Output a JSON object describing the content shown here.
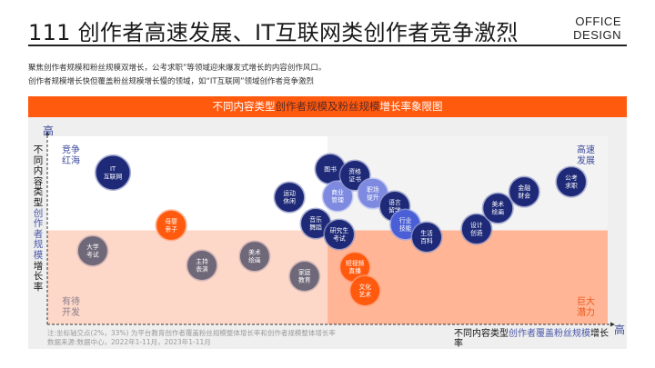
{
  "header": {
    "title": "111 创作者高速发展、IT互联网类创作者竞争激烈",
    "brand_line1": "OFFICE",
    "brand_line2": "DESIGN"
  },
  "description": {
    "line1": "聚焦创作者规模和粉丝规模双增长，公考求职”等领域迎来爆发式增长的内容创作风口。",
    "line2": "创作者规模增长快但覆盖粉丝规模增长慢的领域，如“IT互联网”领域创作者竞争激烈"
  },
  "colors": {
    "navy": "#1e2a78",
    "light_blue": "#7d8ae0",
    "mid_blue": "#4a5fd6",
    "gray": "#6e6878",
    "orange": "#ff5a0e",
    "banner": "#ff5a0e",
    "q_top_left": "#ffffff",
    "q_top_right": "#f3f3f3",
    "q_bottom_left": "#fdd8c8",
    "q_bottom_right": "#ffb596"
  },
  "chart_data": {
    "type": "scatter",
    "title_parts": [
      "不同内容类型",
      "创作者规模及粉丝规模",
      "增长率象限图"
    ],
    "xlabel_parts": [
      "不同内容类型",
      "创作者覆盖粉丝规模",
      "增长率"
    ],
    "ylabel_parts": [
      "不同内容类型",
      "创作者规模",
      "增长率"
    ],
    "x_axis_high": "高",
    "y_axis_high": "高",
    "x_range": [
      0,
      100
    ],
    "y_range": [
      0,
      100
    ],
    "crosshair": {
      "x": 50,
      "y": 50
    },
    "quadrants": {
      "top_left": "竞争\n红海",
      "top_right": "高速\n发展",
      "bottom_left": "有待\n开发",
      "bottom_right": "巨大\n潜力"
    },
    "note_line1": "注:坐标轴交点(2%，33%) 为平台教育创作者覆盖粉丝规模整体增长率和创作者规模整体增长率",
    "note_line2": "数据来源:数据中心，2022年1-11月，2023年1-11月",
    "points": [
      {
        "name": "IT\n互联网",
        "x": 11.7,
        "y": 80.7,
        "group": "navy"
      },
      {
        "name": "大学\n考试",
        "x": 8.1,
        "y": 39.1,
        "group": "gray"
      },
      {
        "name": "母婴\n亲子",
        "x": 22.1,
        "y": 52.7,
        "group": "orange"
      },
      {
        "name": "主持\n表演",
        "x": 27.6,
        "y": 31.4,
        "group": "gray"
      },
      {
        "name": "美术\n绘画",
        "x": 37.0,
        "y": 36.2,
        "group": "gray"
      },
      {
        "name": "运动\n休闲",
        "x": 43.2,
        "y": 67.6,
        "group": "navy"
      },
      {
        "name": "家庭\n教育",
        "x": 45.9,
        "y": 25.6,
        "group": "gray"
      },
      {
        "name": "图书",
        "x": 50.5,
        "y": 82.6,
        "group": "navy"
      },
      {
        "name": "商业\n管理",
        "x": 51.8,
        "y": 68.1,
        "group": "light_blue"
      },
      {
        "name": "资格\n证书",
        "x": 54.9,
        "y": 79.2,
        "group": "navy"
      },
      {
        "name": "职场\n提升",
        "x": 58.1,
        "y": 69.6,
        "group": "light_blue"
      },
      {
        "name": "音乐\n舞蹈",
        "x": 47.9,
        "y": 53.6,
        "group": "navy"
      },
      {
        "name": "研究生\n考试",
        "x": 52.1,
        "y": 47.8,
        "group": "navy"
      },
      {
        "name": "语言\n留学",
        "x": 62.0,
        "y": 62.8,
        "group": "navy"
      },
      {
        "name": "行业\n技能",
        "x": 63.9,
        "y": 53.1,
        "group": "mid_blue"
      },
      {
        "name": "生活\n百科",
        "x": 67.7,
        "y": 46.4,
        "group": "navy"
      },
      {
        "name": "短视频\n直播",
        "x": 54.9,
        "y": 30.4,
        "group": "orange"
      },
      {
        "name": "文化\n艺术",
        "x": 56.7,
        "y": 17.9,
        "group": "orange"
      },
      {
        "name": "设计\n创造",
        "x": 76.6,
        "y": 50.7,
        "group": "navy"
      },
      {
        "name": "美术\n绘画",
        "x": 80.4,
        "y": 61.8,
        "group": "navy"
      },
      {
        "name": "金融\n财会",
        "x": 85.1,
        "y": 70.5,
        "group": "navy"
      },
      {
        "name": "公考\n求职",
        "x": 93.5,
        "y": 75.8,
        "group": "navy"
      }
    ]
  }
}
